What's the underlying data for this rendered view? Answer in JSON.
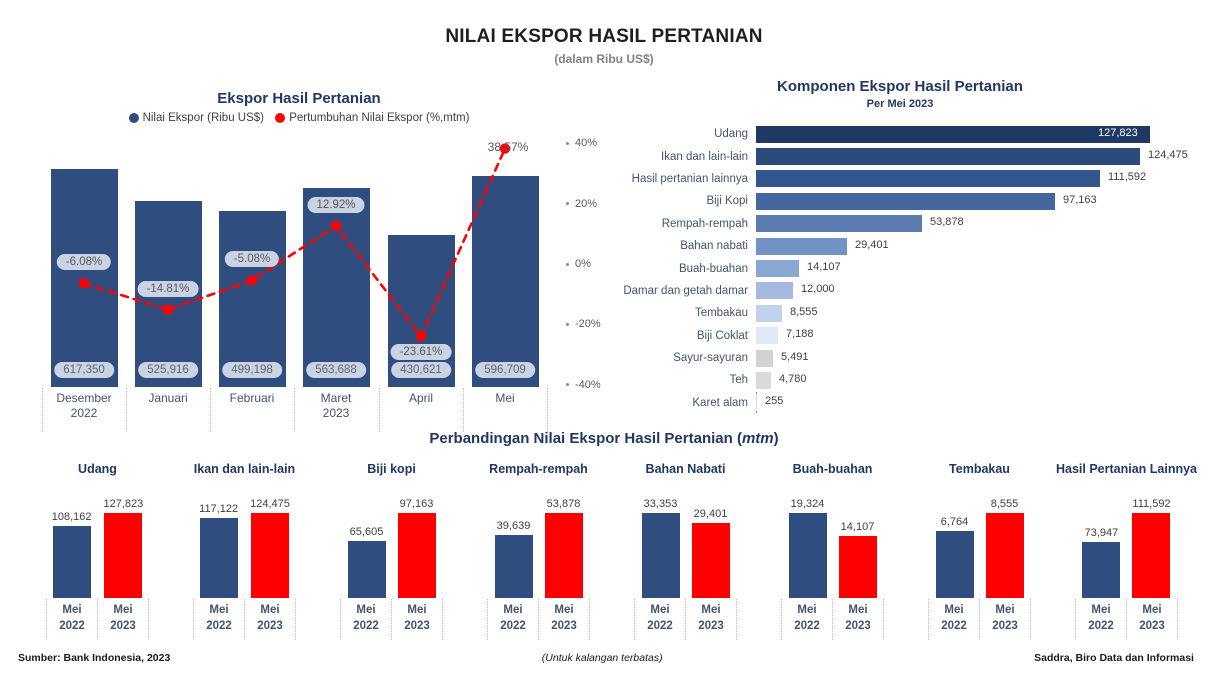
{
  "header": {
    "title": "NILAI EKSPOR HASIL PERTANIAN",
    "subtitle": "(dalam Ribu US$)"
  },
  "colors": {
    "navy_bar": "#2f4d7e",
    "red": "#ff0000",
    "section_title": "#1f3864",
    "pill_bg": "#c9d3e3",
    "axis_text": "#595959",
    "category_text": "#44546a"
  },
  "chart_data": [
    {
      "id": "ekspor-hasil-pertanian-trend",
      "type": "bar",
      "subtype": "bar+line-combo",
      "title": "Ekspor Hasil Pertanian",
      "legend": [
        {
          "label": "Nilai Ekspor (Ribu US$)",
          "color": "#2f4d7e"
        },
        {
          "label": "Pertumbuhan Nilai Ekspor (%,mtm)",
          "color": "#ff0000"
        }
      ],
      "categories": [
        "Desember 2022",
        "Januari",
        "Februari",
        "Maret 2023",
        "April",
        "Mei"
      ],
      "category_lines": [
        [
          "Desember",
          "2022"
        ],
        [
          "Januari"
        ],
        [
          "Februari"
        ],
        [
          "Maret",
          "2023"
        ],
        [
          "April"
        ],
        [
          "Mei"
        ]
      ],
      "series": [
        {
          "name": "Nilai Ekspor (Ribu US$)",
          "type": "bar",
          "color": "#2f4d7e",
          "values": [
            617350,
            525916,
            499198,
            563688,
            430621,
            596709
          ],
          "labels": [
            "617,350",
            "525,916",
            "499,198",
            "563,688",
            "430,621",
            "596,709"
          ]
        },
        {
          "name": "Pertumbuhan Nilai Ekspor (%,mtm)",
          "type": "line",
          "color": "#ff0000",
          "values": [
            -6.08,
            -14.81,
            -5.08,
            12.92,
            -23.61,
            38.57
          ],
          "labels": [
            "-6.08%",
            "-14.81%",
            "-5.08%",
            "12.92%",
            "-23.61%",
            "38.57%"
          ],
          "label_boxed": [
            true,
            true,
            true,
            true,
            true,
            false
          ],
          "label_below_point": [
            false,
            false,
            false,
            false,
            true,
            false
          ]
        }
      ],
      "secondary_axis": {
        "ticks": [
          "40%",
          "20%",
          "0%",
          "-20%",
          "-40%"
        ],
        "values": [
          40,
          20,
          0,
          -20,
          -40
        ]
      },
      "grid": false,
      "legend_position": "top"
    },
    {
      "id": "komponen-ekspor",
      "type": "bar",
      "subtype": "horizontal",
      "title": "Komponen Ekspor Hasil Pertanian",
      "subtitle": "Per Mei 2023",
      "categories": [
        "Udang",
        "Ikan dan lain-lain",
        "Hasil pertanian lainnya",
        "Biji Kopi",
        "Rempah-rempah",
        "Bahan nabati",
        "Buah-buahan",
        "Damar dan getah damar",
        "Tembakau",
        "Biji Coklat",
        "Sayur-sayuran",
        "Teh",
        "Karet alam"
      ],
      "values": [
        127823,
        124475,
        111592,
        97163,
        53878,
        29401,
        14107,
        12000,
        8555,
        7188,
        5491,
        4780,
        255
      ],
      "labels": [
        "127,823",
        "124,475",
        "111,592",
        "97,163",
        "53,878",
        "29,401",
        "14,107",
        "12,000",
        "8,555",
        "7,188",
        "5,491",
        "4,780",
        "255"
      ],
      "bar_colors": [
        "#1f3864",
        "#2c4a7c",
        "#33568f",
        "#44679f",
        "#5b7bb1",
        "#7291c4",
        "#8aa7d4",
        "#a6badf",
        "#c3d2ec",
        "#e2e9f6",
        "#d2d2d2",
        "#dadada",
        "#d9d9d9"
      ],
      "value_label_inside": [
        true,
        false,
        false,
        false,
        false,
        false,
        false,
        false,
        false,
        false,
        false,
        false,
        false
      ],
      "grid": false
    },
    {
      "id": "perbandingan-mtm",
      "type": "bar",
      "subtype": "small-multiples",
      "title_parts": {
        "prefix": "Perbandingan Nilai Ekspor Hasil Pertanian (",
        "italic": "mtm",
        "suffix": ")"
      },
      "categories": [
        "Mei 2022",
        "Mei 2023"
      ],
      "category_lines": [
        [
          "Mei",
          "2022"
        ],
        [
          "Mei",
          "2023"
        ]
      ],
      "series_colors": [
        "#2f4d7e",
        "#ff0000"
      ],
      "charts": [
        {
          "name": "Udang",
          "values": [
            108162,
            127823
          ],
          "labels": [
            "108,162",
            "127,823"
          ]
        },
        {
          "name": "Ikan dan lain-lain",
          "values": [
            117122,
            124475
          ],
          "labels": [
            "117,122",
            "124,475"
          ]
        },
        {
          "name": "Biji kopi",
          "values": [
            65605,
            97163
          ],
          "labels": [
            "65,605",
            "97,163"
          ]
        },
        {
          "name": "Rempah-rempah",
          "values": [
            39639,
            53878
          ],
          "labels": [
            "39,639",
            "53,878"
          ]
        },
        {
          "name": "Bahan Nabati",
          "values": [
            33353,
            29401
          ],
          "labels": [
            "33,353",
            "29,401"
          ]
        },
        {
          "name": "Buah-buahan",
          "values": [
            19324,
            14107
          ],
          "labels": [
            "19,324",
            "14,107"
          ]
        },
        {
          "name": "Tembakau",
          "values": [
            6764,
            8555
          ],
          "labels": [
            "6,764",
            "8,555"
          ]
        },
        {
          "name": "Hasil Pertanian Lainnya",
          "values": [
            73947,
            111592
          ],
          "labels": [
            "73,947",
            "111,592"
          ]
        }
      ]
    }
  ],
  "footer": {
    "source": "Sumber: Bank Indonesia, 2023",
    "center": "(Untuk kalangan terbatas)",
    "right": "Saddra, Biro Data dan Informasi"
  }
}
